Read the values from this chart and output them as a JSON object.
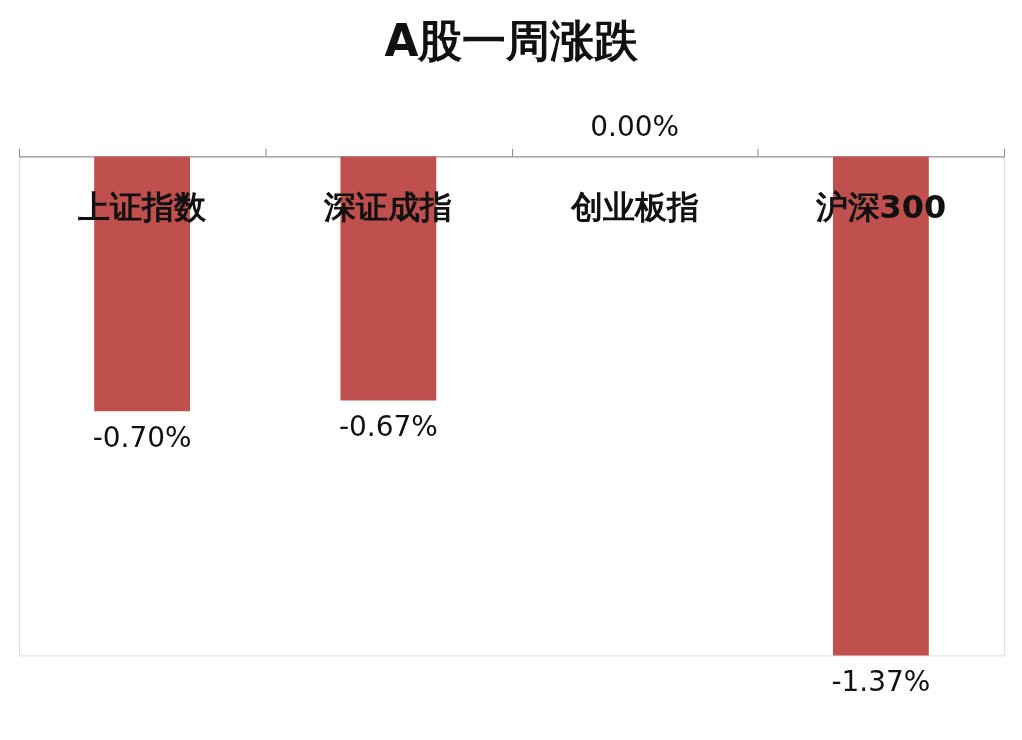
{
  "chart_data": {
    "type": "bar",
    "title": "A股一周涨跌",
    "categories": [
      "上证指数",
      "深证成指",
      "创业板指",
      "沪深300"
    ],
    "values": [
      -0.7,
      -0.67,
      0.0,
      -1.37
    ],
    "value_labels": [
      "-0.70%",
      "-0.67%",
      "0.00%",
      "-1.37%"
    ],
    "color": "#c0504d",
    "grid": false
  }
}
